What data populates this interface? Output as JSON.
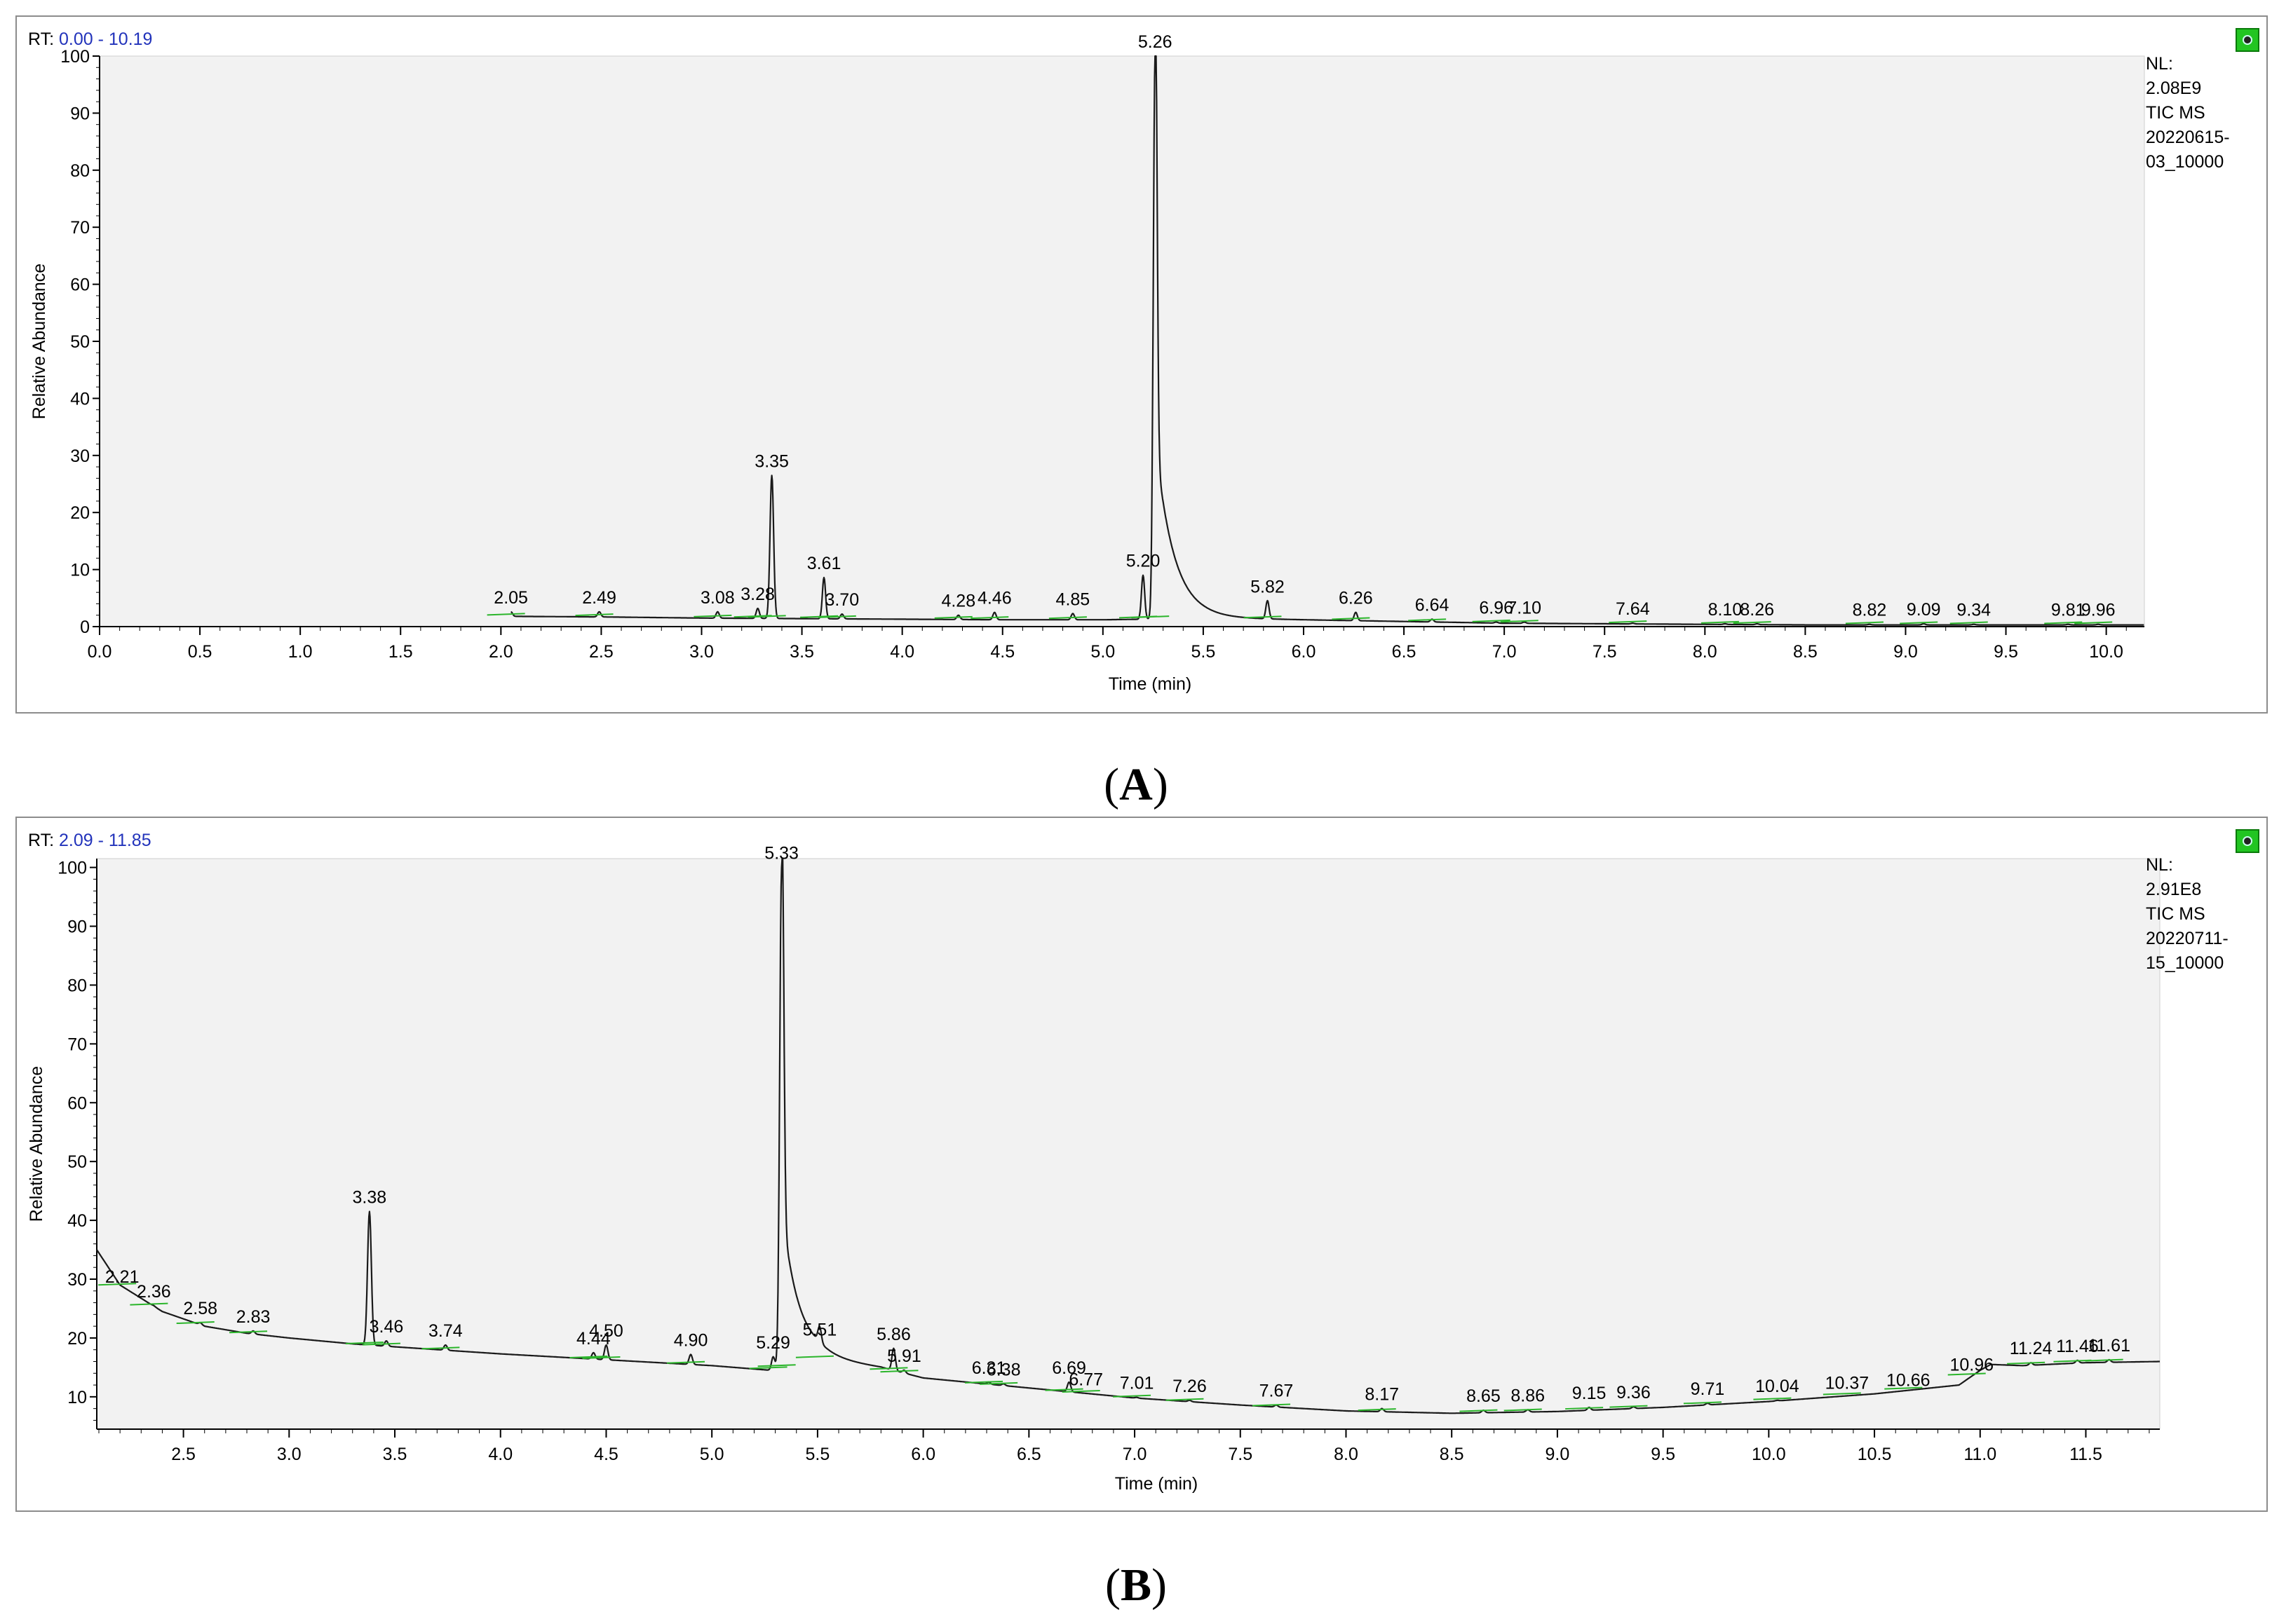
{
  "figure": {
    "panels": [
      {
        "id": "A",
        "caption": "(A)",
        "caption_letter": "A",
        "rt_prefix": "RT:",
        "rt_range": "0.00 - 10.19",
        "nl_lines": [
          "NL:",
          "2.08E9",
          "TIC  MS",
          "20220615-",
          "03_10000"
        ],
        "icon": "chromatogram-toggle-icon"
      },
      {
        "id": "B",
        "caption": "(B)",
        "caption_letter": "B",
        "rt_prefix": "RT:",
        "rt_range": "2.09 - 11.85",
        "nl_lines": [
          "NL:",
          "2.91E8",
          "TIC  MS",
          "20220711-",
          "15_10000"
        ],
        "icon": "chromatogram-toggle-icon"
      }
    ]
  },
  "chart_data": [
    {
      "type": "line",
      "xlabel": "Time (min)",
      "ylabel": "Relative Abundance",
      "xlim": [
        0.0,
        10.19
      ],
      "ylim": [
        0,
        100
      ],
      "x_ticks": [
        "0.0",
        "0.5",
        "1.0",
        "1.5",
        "2.0",
        "2.5",
        "3.0",
        "3.5",
        "4.0",
        "4.5",
        "5.0",
        "5.5",
        "6.0",
        "6.5",
        "7.0",
        "7.5",
        "8.0",
        "8.5",
        "9.0",
        "9.5",
        "10.0"
      ],
      "y_ticks": [
        "0",
        "10",
        "20",
        "30",
        "40",
        "50",
        "60",
        "70",
        "80",
        "90",
        "100"
      ],
      "baseline": [
        [
          2.05,
          1.8
        ],
        [
          2.5,
          1.7
        ],
        [
          3.0,
          1.5
        ],
        [
          3.5,
          1.4
        ],
        [
          4.0,
          1.3
        ],
        [
          4.5,
          1.2
        ],
        [
          5.0,
          1.2
        ],
        [
          5.2,
          1.3
        ],
        [
          5.5,
          1.5
        ],
        [
          6.0,
          1.2
        ],
        [
          6.5,
          0.9
        ],
        [
          7.0,
          0.6
        ],
        [
          7.5,
          0.5
        ],
        [
          8.0,
          0.4
        ],
        [
          8.5,
          0.3
        ],
        [
          9.0,
          0.3
        ],
        [
          9.5,
          0.3
        ],
        [
          10.19,
          0.3
        ]
      ],
      "tail_start": 5.26,
      "tail_amplitude": 32,
      "tail_decay": 0.09,
      "peaks": [
        {
          "x": 2.05,
          "y": 2.6,
          "label": "2.05"
        },
        {
          "x": 2.49,
          "y": 2.6,
          "label": "2.49"
        },
        {
          "x": 3.08,
          "y": 2.6,
          "label": "3.08"
        },
        {
          "x": 3.28,
          "y": 3.2,
          "label": "3.28"
        },
        {
          "x": 3.35,
          "y": 26.5,
          "label": "3.35"
        },
        {
          "x": 3.61,
          "y": 8.6,
          "label": "3.61"
        },
        {
          "x": 3.7,
          "y": 2.2,
          "label": "3.70"
        },
        {
          "x": 4.28,
          "y": 2.0,
          "label": "4.28"
        },
        {
          "x": 4.46,
          "y": 2.5,
          "label": "4.46"
        },
        {
          "x": 4.85,
          "y": 2.3,
          "label": "4.85"
        },
        {
          "x": 5.2,
          "y": 9.0,
          "label": "5.20"
        },
        {
          "x": 5.26,
          "y": 100,
          "label": "5.26"
        },
        {
          "x": 5.82,
          "y": 4.5,
          "label": "5.82"
        },
        {
          "x": 6.26,
          "y": 2.5,
          "label": "6.26"
        },
        {
          "x": 6.64,
          "y": 1.3,
          "label": "6.64"
        },
        {
          "x": 6.96,
          "y": 0.8,
          "label": "6.96"
        },
        {
          "x": 7.1,
          "y": 0.8,
          "label": "7.10"
        },
        {
          "x": 7.64,
          "y": 0.6,
          "label": "7.64"
        },
        {
          "x": 8.1,
          "y": 0.5,
          "label": "8.10"
        },
        {
          "x": 8.26,
          "y": 0.5,
          "label": "8.26"
        },
        {
          "x": 8.82,
          "y": 0.4,
          "label": "8.82"
        },
        {
          "x": 9.09,
          "y": 0.5,
          "label": "9.09"
        },
        {
          "x": 9.34,
          "y": 0.4,
          "label": "9.34"
        },
        {
          "x": 9.81,
          "y": 0.4,
          "label": "9.81"
        },
        {
          "x": 9.96,
          "y": 0.4,
          "label": "9.96"
        }
      ],
      "colors": {
        "trace": "#1a1a1a",
        "plot_bg": "#f2f2f2",
        "integration": "#2bb52b"
      }
    },
    {
      "type": "line",
      "xlabel": "Time (min)",
      "ylabel": "Relative Abundance",
      "xlim": [
        2.09,
        11.85
      ],
      "ylim": [
        4.5,
        101.5
      ],
      "x_ticks": [
        "2.5",
        "3.0",
        "3.5",
        "4.0",
        "4.5",
        "5.0",
        "5.5",
        "6.0",
        "6.5",
        "7.0",
        "7.5",
        "8.0",
        "8.5",
        "9.0",
        "9.5",
        "10.0",
        "10.5",
        "11.0",
        "11.5"
      ],
      "y_ticks": [
        "10",
        "20",
        "30",
        "40",
        "50",
        "60",
        "70",
        "80",
        "90",
        "100"
      ],
      "baseline": [
        [
          2.09,
          35
        ],
        [
          2.2,
          29
        ],
        [
          2.4,
          24.5
        ],
        [
          2.6,
          22
        ],
        [
          2.8,
          20.8
        ],
        [
          3.0,
          20
        ],
        [
          3.3,
          19
        ],
        [
          3.5,
          18.5
        ],
        [
          4.0,
          17.3
        ],
        [
          4.5,
          16.3
        ],
        [
          5.0,
          15.3
        ],
        [
          5.28,
          14.5
        ],
        [
          5.5,
          16.5
        ],
        [
          5.8,
          15
        ],
        [
          6.0,
          13.2
        ],
        [
          6.5,
          11.5
        ],
        [
          7.0,
          9.8
        ],
        [
          7.5,
          8.6
        ],
        [
          8.0,
          7.6
        ],
        [
          8.5,
          7.2
        ],
        [
          9.0,
          7.5
        ],
        [
          9.5,
          8.2
        ],
        [
          10.0,
          9.2
        ],
        [
          10.5,
          10.5
        ],
        [
          10.9,
          12
        ],
        [
          11.0,
          14.5
        ],
        [
          11.05,
          15.5
        ],
        [
          11.2,
          15.3
        ],
        [
          11.5,
          15.8
        ],
        [
          11.85,
          16
        ]
      ],
      "tail_start": 5.33,
      "tail_amplitude": 28,
      "tail_decay": 0.08,
      "peaks": [
        {
          "x": 2.21,
          "y": 28,
          "label": "2.21"
        },
        {
          "x": 2.36,
          "y": 25.5,
          "label": "2.36"
        },
        {
          "x": 2.58,
          "y": 22.6,
          "label": "2.58"
        },
        {
          "x": 2.83,
          "y": 21.2,
          "label": "2.83"
        },
        {
          "x": 3.38,
          "y": 41.5,
          "label": "3.38"
        },
        {
          "x": 3.46,
          "y": 19.5,
          "label": "3.46"
        },
        {
          "x": 3.74,
          "y": 18.8,
          "label": "3.74"
        },
        {
          "x": 4.44,
          "y": 17.5,
          "label": "4.44"
        },
        {
          "x": 4.5,
          "y": 18.8,
          "label": "4.50"
        },
        {
          "x": 4.9,
          "y": 17.2,
          "label": "4.90"
        },
        {
          "x": 5.29,
          "y": 16.8,
          "label": "5.29"
        },
        {
          "x": 5.33,
          "y": 100,
          "label": "5.33"
        },
        {
          "x": 5.51,
          "y": 19.0,
          "label": "5.51"
        },
        {
          "x": 5.86,
          "y": 18.2,
          "label": "5.86"
        },
        {
          "x": 5.91,
          "y": 14.5,
          "label": "5.91"
        },
        {
          "x": 6.31,
          "y": 12.5,
          "label": "6.31"
        },
        {
          "x": 6.38,
          "y": 12.2,
          "label": "6.38"
        },
        {
          "x": 6.69,
          "y": 12.5,
          "label": "6.69"
        },
        {
          "x": 6.77,
          "y": 10.5,
          "label": "6.77"
        },
        {
          "x": 7.01,
          "y": 9.9,
          "label": "7.01"
        },
        {
          "x": 7.26,
          "y": 9.4,
          "label": "7.26"
        },
        {
          "x": 7.67,
          "y": 8.6,
          "label": "7.67"
        },
        {
          "x": 8.17,
          "y": 8.0,
          "label": "8.17"
        },
        {
          "x": 8.65,
          "y": 7.7,
          "label": "8.65"
        },
        {
          "x": 8.86,
          "y": 7.8,
          "label": "8.86"
        },
        {
          "x": 9.15,
          "y": 8.2,
          "label": "9.15"
        },
        {
          "x": 9.36,
          "y": 8.3,
          "label": "9.36"
        },
        {
          "x": 9.71,
          "y": 8.9,
          "label": "9.71"
        },
        {
          "x": 10.04,
          "y": 9.4,
          "label": "10.04"
        },
        {
          "x": 10.37,
          "y": 9.9,
          "label": "10.37"
        },
        {
          "x": 10.66,
          "y": 10.4,
          "label": "10.66"
        },
        {
          "x": 10.96,
          "y": 13.0,
          "label": "10.96"
        },
        {
          "x": 11.24,
          "y": 15.8,
          "label": "11.24"
        },
        {
          "x": 11.46,
          "y": 16.2,
          "label": "11.46"
        },
        {
          "x": 11.61,
          "y": 16.3,
          "label": "11.61"
        }
      ],
      "colors": {
        "trace": "#1a1a1a",
        "plot_bg": "#f2f2f2",
        "integration": "#2bb52b"
      }
    }
  ]
}
